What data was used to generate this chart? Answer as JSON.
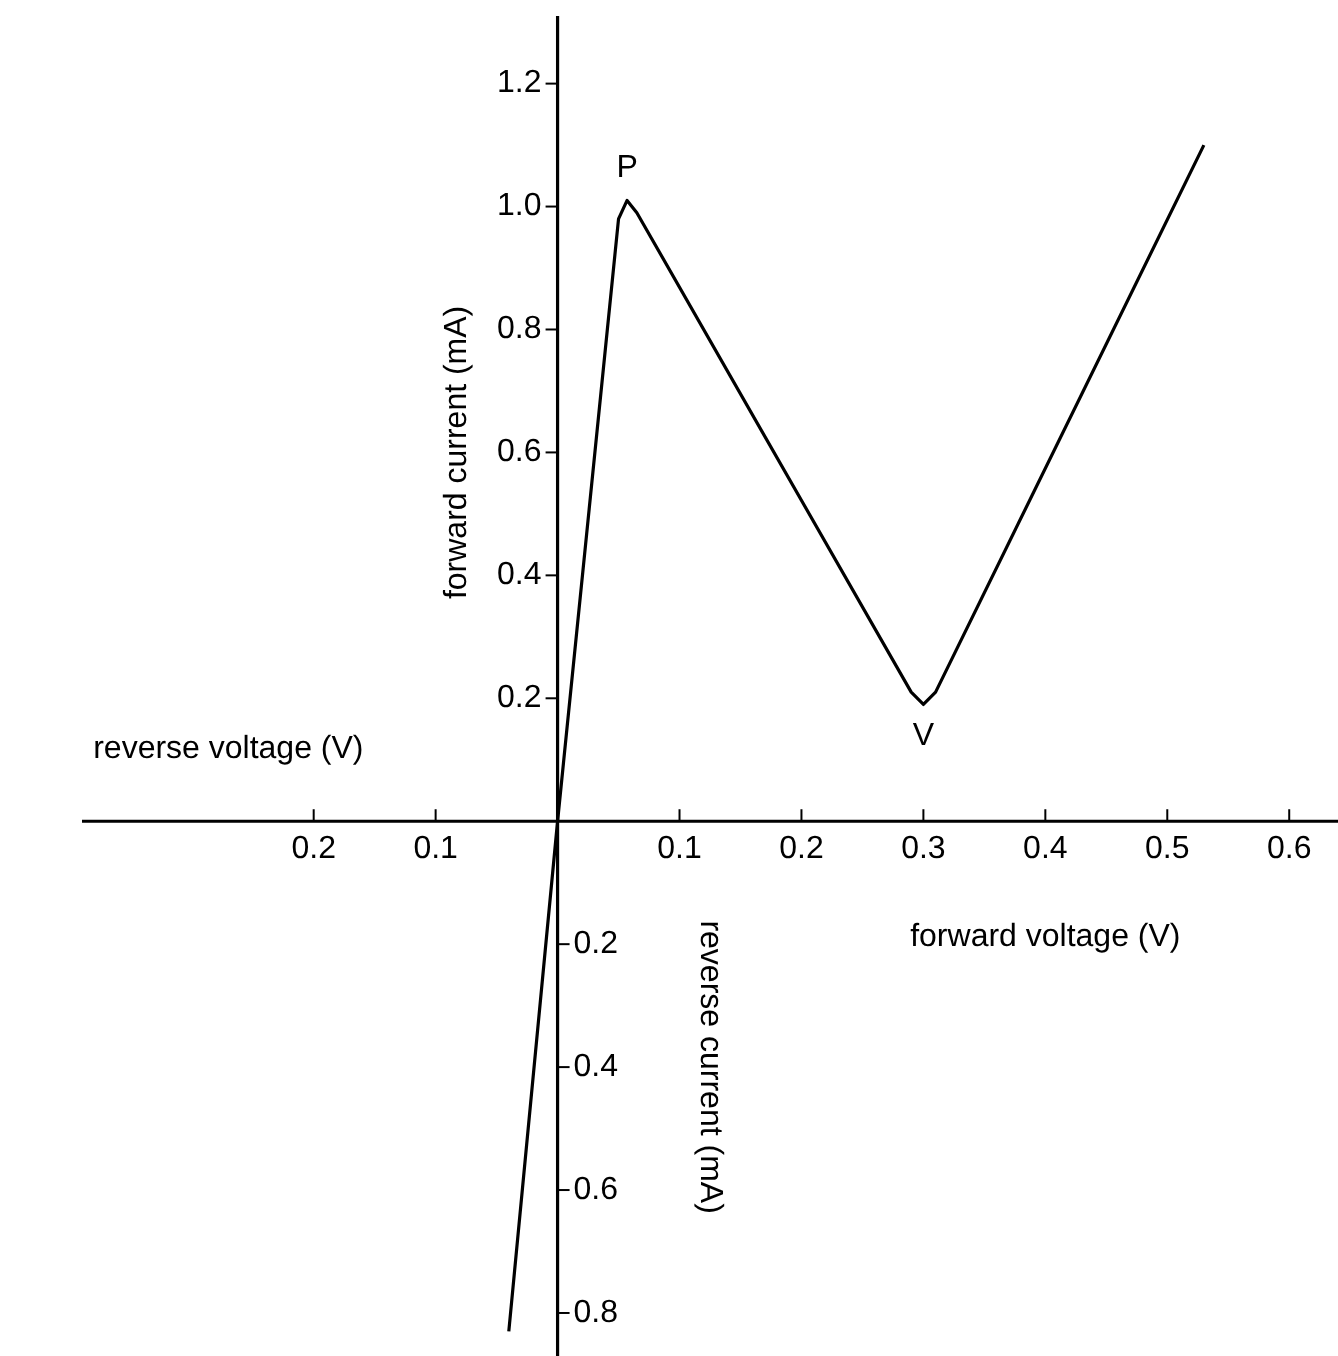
{
  "chart_data": {
    "type": "line",
    "xlabel": "forward voltage (V)",
    "ylabel": "forward current (mA)",
    "y2label": "reverse current (mA)",
    "annotations": [
      {
        "text": "P",
        "x": 0.057,
        "y": 1.01
      },
      {
        "text": "V",
        "x": 0.3,
        "y": 0.19
      },
      "reverse voltage (V)"
    ],
    "x": [
      -0.04,
      0,
      0.05,
      0.057,
      0.065,
      0.29,
      0.3,
      0.31,
      0.53
    ],
    "series": [
      {
        "color": "#000000",
        "values": [
          -0.83,
          0,
          0.98,
          1.01,
          0.99,
          0.21,
          0.19,
          0.21,
          1.1
        ]
      }
    ],
    "xlim": [
      -0.39,
      0.64
    ],
    "ylim": [
      -0.87,
      1.31
    ],
    "y2lim": [
      -0.87,
      1.31
    ],
    "xticks": [
      {
        "value": -0.2,
        "label": "0.2"
      },
      {
        "value": -0.1,
        "label": "0.1"
      },
      0.1,
      0.2,
      0.3,
      0.4,
      0.5,
      0.6
    ],
    "yticks": [
      0.2,
      0.4,
      0.6,
      0.8,
      {
        "value": 1.0,
        "label": "1.0"
      },
      1.2
    ],
    "y2ticks": [
      {
        "value": -0.8,
        "label": "0.8"
      },
      {
        "value": -0.6,
        "label": "0.6"
      },
      {
        "value": -0.4,
        "label": "0.4"
      },
      {
        "value": -0.2,
        "label": "0.2"
      }
    ],
    "grid": false,
    "legend": false,
    "marker": "none",
    "line_style": "solid"
  }
}
